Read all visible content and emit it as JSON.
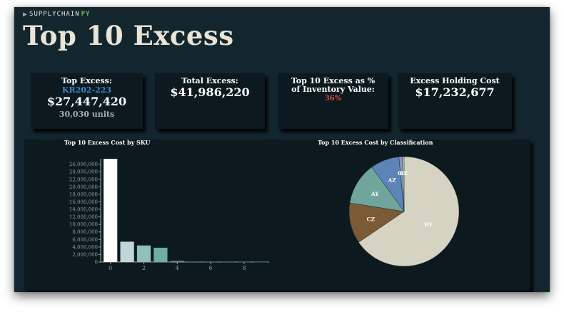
{
  "app": {
    "logo_text": "SUPPLYCHAIN",
    "logo_accent": "PY",
    "title": "Top 10 Excess"
  },
  "kpis": {
    "top_excess": {
      "label": "Top Excess:",
      "sku": "KR202-223",
      "value": "$27,447,420",
      "units": "30,030 units"
    },
    "total_excess": {
      "label": "Total Excess:",
      "value": "$41,986,220"
    },
    "pct_inventory": {
      "label": "Top 10 Excess as % of Inventory Value:",
      "value": "36%"
    },
    "holding_cost": {
      "label": "Excess Holding Cost",
      "value": "$17,232,677"
    }
  },
  "colors": {
    "background": "#13262e",
    "card": "#0c1a20",
    "sku_blue": "#3f86c8",
    "percent_red": "#e4463d",
    "title_cream": "#e9e4d6"
  },
  "chart_data": [
    {
      "type": "bar",
      "title": "Top 10 Excess Cost by SKU",
      "x": [
        0,
        1,
        2,
        3,
        4,
        5,
        6,
        7,
        8,
        9
      ],
      "values": [
        27447420,
        5400000,
        4400000,
        3800000,
        300000,
        60000,
        50000,
        40000,
        30000,
        20000
      ],
      "colors": [
        "#ffffff",
        "#bfd8d6",
        "#8fc0ba",
        "#70ada3",
        "#5a9a8f",
        "#4f8c82",
        "#467e75",
        "#3f7169",
        "#38655e",
        "#325a54"
      ],
      "xticks": [
        0,
        2,
        4,
        6,
        8
      ],
      "yticks": [
        0,
        2000000,
        4000000,
        6000000,
        8000000,
        10000000,
        12000000,
        14000000,
        16000000,
        18000000,
        20000000,
        22000000,
        24000000,
        26000000
      ],
      "ytick_labels": [
        "0",
        "2,000,000",
        "4,000,000",
        "6,000,000",
        "8,000,000",
        "10,000,000",
        "12,000,000",
        "14,000,000",
        "16,000,000",
        "18,000,000",
        "20,000,000",
        "22,000,000",
        "24,000,000",
        "26,000,000"
      ],
      "ylim": [
        0,
        27447420
      ],
      "xlim": [
        -0.5,
        9.5
      ]
    },
    {
      "type": "pie",
      "title": "Top 10 Excess Cost by Classification",
      "slices": [
        {
          "label": "BY",
          "value": 65.5,
          "color": "#d6d3c2"
        },
        {
          "label": "CZ",
          "value": 12.0,
          "color": "#7a5b35"
        },
        {
          "label": "AY",
          "value": 12.5,
          "color": "#6fa59c"
        },
        {
          "label": "AZ",
          "value": 8.5,
          "color": "#5d84b6"
        },
        {
          "label": "CY",
          "value": 1.0,
          "color": "#7a99c9"
        },
        {
          "label": "BZ",
          "value": 0.5,
          "color": "#d0cdbd"
        }
      ]
    }
  ]
}
